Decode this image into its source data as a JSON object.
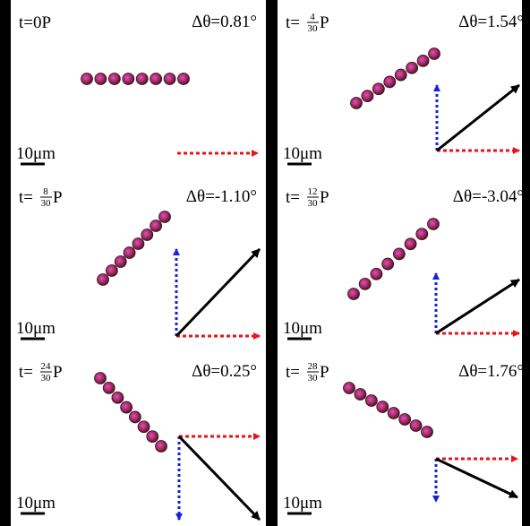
{
  "panels": [
    {
      "time": {
        "text": "t=0P"
      },
      "angle": "Δθ=0.81°",
      "scale": "10μm"
    },
    {
      "time": {
        "prefix": "t=",
        "numerator": "4",
        "denominator": "30",
        "suffix": "P"
      },
      "angle": "Δθ=1.54°",
      "scale": "10μm"
    },
    {
      "time": {
        "prefix": "t=",
        "numerator": "8",
        "denominator": "30",
        "suffix": "P"
      },
      "angle": "Δθ=-1.10°",
      "scale": "10μm"
    },
    {
      "time": {
        "prefix": "t=",
        "numerator": "12",
        "denominator": "30",
        "suffix": "P"
      },
      "angle": "Δθ=-3.04°",
      "scale": "10μm"
    },
    {
      "time": {
        "prefix": "t=",
        "numerator": "24",
        "denominator": "30",
        "suffix": "P"
      },
      "angle": "Δθ=0.25°",
      "scale": "10μm"
    },
    {
      "time": {
        "prefix": "t=",
        "numerator": "28",
        "denominator": "30",
        "suffix": "P"
      },
      "angle": "Δθ=1.76°",
      "scale": "10μm"
    }
  ]
}
